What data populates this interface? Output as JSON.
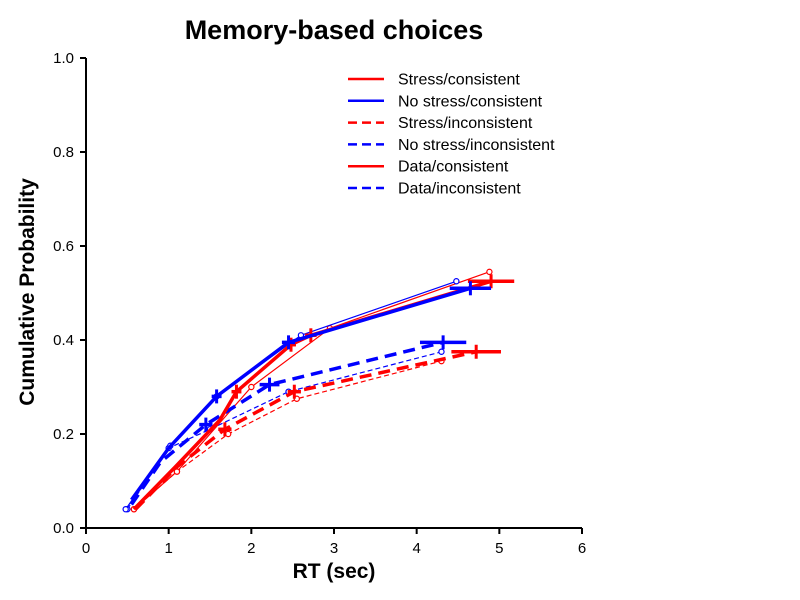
{
  "chart_data": {
    "type": "line",
    "title": "Memory-based choices",
    "xlabel": "RT (sec)",
    "ylabel": "Cumulative Probability",
    "xlim": [
      0,
      6
    ],
    "ylim": [
      0,
      1
    ],
    "xticks": [
      0,
      1,
      2,
      3,
      4,
      5,
      6
    ],
    "yticks": [
      0.0,
      0.2,
      0.4,
      0.6,
      0.8,
      1.0
    ],
    "ytick_labels": [
      "0.0",
      "0.2",
      "0.4",
      "0.6",
      "0.8",
      "1.0"
    ],
    "grid": false,
    "legend_position": "top-right",
    "series": [
      {
        "name": "Stress/consistent",
        "color": "#ff0000",
        "style": "solid",
        "kind": "model",
        "x": [
          0.58,
          1.08,
          1.62,
          1.82,
          2.48,
          2.72,
          4.9
        ],
        "y": [
          0.04,
          0.13,
          0.23,
          0.29,
          0.39,
          0.41,
          0.525
        ],
        "errx": [
          null,
          null,
          null,
          0.06,
          0.06,
          0.07,
          0.28
        ]
      },
      {
        "name": "No stress/consistent",
        "color": "#0000ff",
        "style": "solid",
        "kind": "model",
        "x": [
          0.55,
          1.0,
          1.58,
          2.45,
          4.65
        ],
        "y": [
          0.06,
          0.17,
          0.28,
          0.395,
          0.51
        ],
        "errx": [
          null,
          null,
          0.06,
          0.08,
          0.25
        ]
      },
      {
        "name": "Stress/inconsistent",
        "color": "#ff0000",
        "style": "dashed",
        "kind": "model",
        "x": [
          0.6,
          1.1,
          1.68,
          2.52,
          4.72
        ],
        "y": [
          0.04,
          0.13,
          0.21,
          0.29,
          0.375
        ],
        "errx": [
          null,
          null,
          0.08,
          0.08,
          0.3
        ]
      },
      {
        "name": "No stress/inconsistent",
        "color": "#0000ff",
        "style": "dashed",
        "kind": "model",
        "x": [
          0.55,
          0.9,
          1.45,
          2.22,
          4.32
        ],
        "y": [
          0.05,
          0.14,
          0.22,
          0.305,
          0.395
        ],
        "errx": [
          null,
          null,
          0.08,
          0.12,
          0.28
        ]
      },
      {
        "name": "Data/consistent",
        "color": "#ff0000",
        "style": "solid",
        "kind": "data",
        "x": [
          0.58,
          1.1,
          2.0,
          2.95,
          4.88
        ],
        "y": [
          0.04,
          0.12,
          0.3,
          0.425,
          0.545
        ]
      },
      {
        "name": "",
        "color": "#0000ff",
        "style": "solid",
        "kind": "data",
        "x": [
          0.48,
          1.02,
          1.58,
          2.6,
          4.48
        ],
        "y": [
          0.04,
          0.175,
          0.28,
          0.41,
          0.525
        ]
      },
      {
        "name": "Data/inconsistent",
        "color": "#0000ff",
        "style": "dashed",
        "kind": "data",
        "x": [
          0.5,
          1.0,
          1.5,
          2.45,
          4.3
        ],
        "y": [
          0.04,
          0.17,
          0.21,
          0.29,
          0.375
        ]
      },
      {
        "name": "",
        "color": "#ff0000",
        "style": "dashed",
        "kind": "data",
        "x": [
          0.58,
          1.1,
          1.72,
          2.55,
          4.3
        ],
        "y": [
          0.04,
          0.12,
          0.2,
          0.275,
          0.355
        ]
      }
    ],
    "legend": [
      {
        "label": "Stress/consistent",
        "color": "#ff0000",
        "style": "solid"
      },
      {
        "label": "No stress/consistent",
        "color": "#0000ff",
        "style": "solid"
      },
      {
        "label": "Stress/inconsistent",
        "color": "#ff0000",
        "style": "dashed"
      },
      {
        "label": "No stress/inconsistent",
        "color": "#0000ff",
        "style": "dashed"
      },
      {
        "label": "Data/consistent",
        "color": "#ff0000",
        "style": "solid"
      },
      {
        "label": "Data/inconsistent",
        "color": "#0000ff",
        "style": "dashed"
      }
    ]
  }
}
